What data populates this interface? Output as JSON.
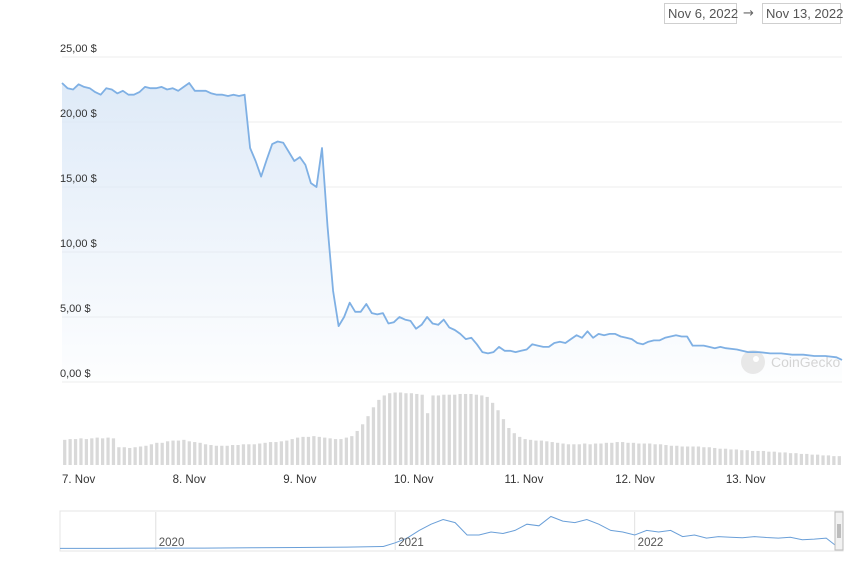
{
  "date_range": {
    "from": "Nov 6, 2022",
    "arrow": "→",
    "to": "Nov 13, 2022"
  },
  "watermark": "CoinGecko",
  "colors": {
    "line": "#7fb0e4",
    "area_top": "#dbe8f7",
    "volume_bar": "#d9d9d9",
    "grid": "#eeeeee",
    "navigator_line": "#6a9fd8"
  },
  "chart_data": {
    "type": "line",
    "title": "",
    "ylabel": "",
    "xlabel": "",
    "y_ticks": [
      "25,00 $",
      "20,00 $",
      "15,00 $",
      "10,00 $",
      "5,00 $",
      "0,00 $"
    ],
    "y_tick_values": [
      25,
      20,
      15,
      10,
      5,
      0
    ],
    "ylim": [
      0,
      25
    ],
    "xlim": [
      0,
      7.05
    ],
    "x_ticks": [
      "7. Nov",
      "8. Nov",
      "9. Nov",
      "10. Nov",
      "11. Nov",
      "12. Nov",
      "13. Nov"
    ],
    "x_tick_values": [
      0,
      1,
      2,
      3,
      4,
      5,
      6
    ],
    "price_series": {
      "name": "",
      "x": [
        0.0,
        0.05,
        0.1,
        0.15,
        0.2,
        0.25,
        0.3,
        0.35,
        0.4,
        0.45,
        0.5,
        0.55,
        0.6,
        0.65,
        0.7,
        0.75,
        0.8,
        0.85,
        0.9,
        0.95,
        1.0,
        1.05,
        1.1,
        1.15,
        1.2,
        1.25,
        1.3,
        1.35,
        1.4,
        1.45,
        1.5,
        1.55,
        1.6,
        1.65,
        1.7,
        1.75,
        1.8,
        1.85,
        1.9,
        1.95,
        2.0,
        2.05,
        2.1,
        2.15,
        2.2,
        2.25,
        2.3,
        2.35,
        2.4,
        2.45,
        2.5,
        2.55,
        2.6,
        2.65,
        2.7,
        2.75,
        2.8,
        2.85,
        2.9,
        2.95,
        3.0,
        3.05,
        3.1,
        3.15,
        3.2,
        3.25,
        3.3,
        3.35,
        3.4,
        3.45,
        3.5,
        3.55,
        3.6,
        3.65,
        3.7,
        3.75,
        3.8,
        3.85,
        3.9,
        3.95,
        4.0,
        4.05,
        4.1,
        4.15,
        4.2,
        4.25,
        4.3,
        4.35,
        4.4,
        4.45,
        4.5,
        4.55,
        4.6,
        4.65,
        4.7,
        4.75,
        4.8,
        4.85,
        4.9,
        4.95,
        5.0,
        5.05,
        5.1,
        5.15,
        5.2,
        5.25,
        5.3,
        5.35,
        5.4,
        5.45,
        5.5,
        5.55,
        5.6,
        5.65,
        5.7,
        5.75,
        5.8,
        5.85,
        5.9,
        5.95,
        6.0,
        6.1,
        6.2,
        6.3,
        6.4,
        6.5,
        6.6,
        6.7,
        6.8,
        6.9,
        7.0,
        7.05
      ],
      "values": [
        23.0,
        22.6,
        22.5,
        22.9,
        22.7,
        22.6,
        22.3,
        22.1,
        22.6,
        22.5,
        22.2,
        22.4,
        22.1,
        22.1,
        22.3,
        22.7,
        22.6,
        22.6,
        22.7,
        22.5,
        22.6,
        22.4,
        22.7,
        23.0,
        22.4,
        22.4,
        22.4,
        22.2,
        22.1,
        22.1,
        22.0,
        22.1,
        22.0,
        22.1,
        18.0,
        17.0,
        15.8,
        17.1,
        18.3,
        18.5,
        18.4,
        17.7,
        17.0,
        17.3,
        16.7,
        15.3,
        15.0,
        18.0,
        12.0,
        7.0,
        4.3,
        5.0,
        6.1,
        5.4,
        5.4,
        6.0,
        5.3,
        5.2,
        5.3,
        4.5,
        4.6,
        5.0,
        4.8,
        4.7,
        4.1,
        4.4,
        5.0,
        4.5,
        4.4,
        4.8,
        4.2,
        4.0,
        3.7,
        3.3,
        3.4,
        2.9,
        2.3,
        2.2,
        2.3,
        2.7,
        2.4,
        2.4,
        2.3,
        2.4,
        2.5,
        2.9,
        2.8,
        2.7,
        2.7,
        3.0,
        3.1,
        3.0,
        3.3,
        3.6,
        3.4,
        3.9,
        3.4,
        3.7,
        3.6,
        3.7,
        3.7,
        3.5,
        3.4,
        3.3,
        3.0,
        2.9,
        3.1,
        3.2,
        3.2,
        3.4,
        3.5,
        3.6,
        3.5,
        3.5,
        2.8,
        2.8,
        2.8,
        2.7,
        2.6,
        2.7,
        2.6,
        2.5,
        2.3,
        2.3,
        2.2,
        2.2,
        2.1,
        2.1,
        2.0,
        2.0,
        1.9,
        1.7
      ]
    },
    "volume_bars": [
      0.34,
      0.35,
      0.35,
      0.36,
      0.35,
      0.36,
      0.37,
      0.36,
      0.37,
      0.36,
      0.24,
      0.24,
      0.23,
      0.24,
      0.25,
      0.26,
      0.28,
      0.3,
      0.3,
      0.32,
      0.33,
      0.33,
      0.34,
      0.32,
      0.31,
      0.3,
      0.28,
      0.27,
      0.26,
      0.26,
      0.26,
      0.27,
      0.27,
      0.28,
      0.28,
      0.28,
      0.29,
      0.3,
      0.31,
      0.31,
      0.32,
      0.33,
      0.35,
      0.37,
      0.38,
      0.38,
      0.39,
      0.38,
      0.37,
      0.36,
      0.35,
      0.35,
      0.37,
      0.39,
      0.46,
      0.55,
      0.66,
      0.78,
      0.88,
      0.94,
      0.97,
      0.98,
      0.98,
      0.97,
      0.97,
      0.96,
      0.95,
      0.7,
      0.94,
      0.94,
      0.95,
      0.95,
      0.95,
      0.96,
      0.96,
      0.96,
      0.95,
      0.94,
      0.92,
      0.84,
      0.74,
      0.62,
      0.5,
      0.43,
      0.38,
      0.35,
      0.34,
      0.33,
      0.33,
      0.32,
      0.31,
      0.3,
      0.29,
      0.28,
      0.28,
      0.28,
      0.29,
      0.28,
      0.29,
      0.29,
      0.3,
      0.3,
      0.31,
      0.31,
      0.3,
      0.3,
      0.29,
      0.29,
      0.29,
      0.28,
      0.28,
      0.27,
      0.26,
      0.26,
      0.25,
      0.25,
      0.25,
      0.25,
      0.24,
      0.24,
      0.23,
      0.22,
      0.22,
      0.21,
      0.21,
      0.2,
      0.2,
      0.19,
      0.19,
      0.19,
      0.18,
      0.18,
      0.17,
      0.17,
      0.16,
      0.16,
      0.15,
      0.15,
      0.14,
      0.14,
      0.13,
      0.13,
      0.12,
      0.12
    ],
    "navigator": {
      "labels": [
        "2020",
        "2021",
        "2022"
      ],
      "label_values": [
        2020.0,
        2021.0,
        2022.0
      ],
      "xlim": [
        2019.6,
        2022.87
      ],
      "x": [
        2019.6,
        2019.8,
        2020.0,
        2020.2,
        2020.4,
        2020.6,
        2020.8,
        2020.95,
        2021.0,
        2021.05,
        2021.1,
        2021.15,
        2021.2,
        2021.25,
        2021.3,
        2021.35,
        2021.4,
        2021.45,
        2021.5,
        2021.55,
        2021.6,
        2021.65,
        2021.7,
        2021.75,
        2021.8,
        2021.85,
        2021.9,
        2021.95,
        2022.0,
        2022.05,
        2022.1,
        2022.15,
        2022.2,
        2022.25,
        2022.3,
        2022.35,
        2022.4,
        2022.45,
        2022.5,
        2022.55,
        2022.6,
        2022.65,
        2022.7,
        2022.75,
        2022.8,
        2022.85
      ],
      "values": [
        0.02,
        0.02,
        0.03,
        0.03,
        0.04,
        0.05,
        0.06,
        0.08,
        0.2,
        0.35,
        0.6,
        0.8,
        0.95,
        0.85,
        0.45,
        0.45,
        0.55,
        0.5,
        0.6,
        0.8,
        0.75,
        1.05,
        0.9,
        0.85,
        0.95,
        0.8,
        0.6,
        0.55,
        0.45,
        0.6,
        0.55,
        0.6,
        0.4,
        0.45,
        0.35,
        0.4,
        0.38,
        0.36,
        0.4,
        0.37,
        0.35,
        0.38,
        0.3,
        0.32,
        0.35,
        0.05
      ]
    }
  }
}
